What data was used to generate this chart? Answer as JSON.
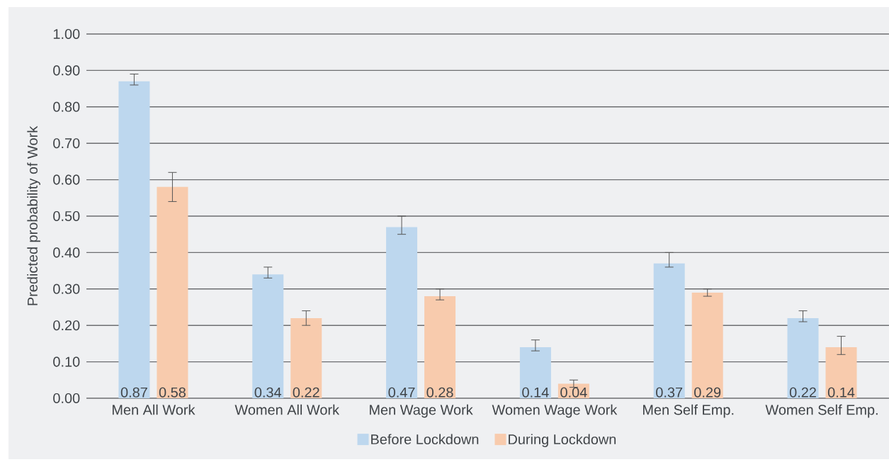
{
  "chart_data": {
    "type": "bar",
    "ylabel": "Predicted probability of Work",
    "categories": [
      "Men All Work",
      "Women All Work",
      "Men Wage Work",
      "Women Wage Work",
      "Men Self Emp.",
      "Women Self Emp."
    ],
    "series": [
      {
        "name": "Before Lockdown",
        "color": "#bdd7ee",
        "values": [
          0.87,
          0.34,
          0.47,
          0.14,
          0.37,
          0.22
        ],
        "value_labels": [
          "0.87",
          "0.34",
          "0.47",
          "0.14",
          "0.37",
          "0.22"
        ],
        "errors": [
          [
            0.86,
            0.89
          ],
          [
            0.33,
            0.36
          ],
          [
            0.45,
            0.5
          ],
          [
            0.13,
            0.16
          ],
          [
            0.36,
            0.4
          ],
          [
            0.21,
            0.24
          ]
        ]
      },
      {
        "name": "During Lockdown",
        "color": "#f8cbad",
        "values": [
          0.58,
          0.22,
          0.28,
          0.04,
          0.29,
          0.14
        ],
        "value_labels": [
          "0.58",
          "0.22",
          "0.28",
          "0.04",
          "0.29",
          "0.14"
        ],
        "errors": [
          [
            0.54,
            0.62
          ],
          [
            0.2,
            0.24
          ],
          [
            0.27,
            0.3
          ],
          [
            0.03,
            0.05
          ],
          [
            0.28,
            0.3
          ],
          [
            0.12,
            0.17
          ]
        ]
      }
    ],
    "ylim": [
      0,
      1
    ],
    "yticks": [
      {
        "value": 0,
        "label": "0.00"
      },
      {
        "value": 0.1,
        "label": "0.10"
      },
      {
        "value": 0.2,
        "label": "0.20"
      },
      {
        "value": 0.3,
        "label": "0.30"
      },
      {
        "value": 0.4,
        "label": "0.40"
      },
      {
        "value": 0.5,
        "label": "0.50"
      },
      {
        "value": 0.6,
        "label": "0.60"
      },
      {
        "value": 0.7,
        "label": "0.70"
      },
      {
        "value": 0.8,
        "label": "0.80"
      },
      {
        "value": 0.9,
        "label": "0.90"
      },
      {
        "value": 1,
        "label": "1.00"
      }
    ],
    "grid": "y",
    "legend": "bottom"
  }
}
